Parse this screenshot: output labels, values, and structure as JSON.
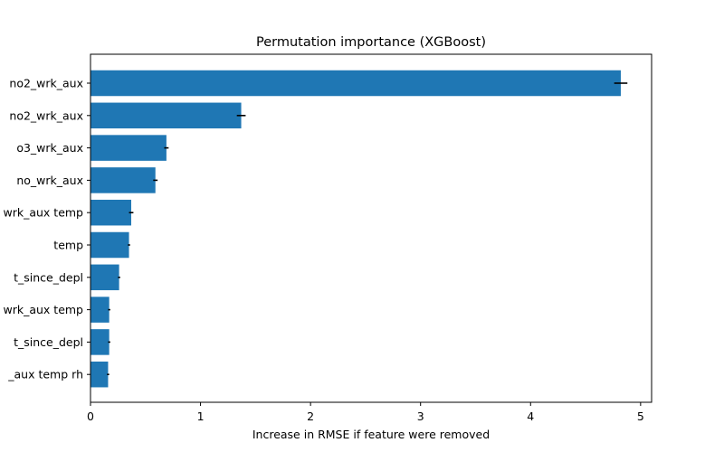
{
  "chart_data": {
    "type": "bar",
    "orientation": "horizontal",
    "title": "Permutation importance (XGBoost)",
    "xlabel": "Increase in RMSE if feature were removed",
    "ylabel": "",
    "xlim": [
      0,
      5.1
    ],
    "xticks": [
      0,
      1,
      2,
      3,
      4,
      5
    ],
    "grid": false,
    "bar_color": "#1f77b4",
    "error_color": "#000000",
    "categories": [
      "no2_wrk_aux",
      "no2_wrk_aux",
      "o3_wrk_aux",
      "no_wrk_aux",
      "wrk_aux temp",
      "temp",
      "t_since_depl",
      "wrk_aux temp",
      "t_since_depl",
      "_aux temp rh"
    ],
    "values": [
      4.82,
      1.37,
      0.69,
      0.59,
      0.37,
      0.35,
      0.26,
      0.17,
      0.17,
      0.16
    ],
    "errors": [
      0.06,
      0.04,
      0.02,
      0.02,
      0.02,
      0.01,
      0.01,
      0.01,
      0.01,
      0.01
    ]
  }
}
